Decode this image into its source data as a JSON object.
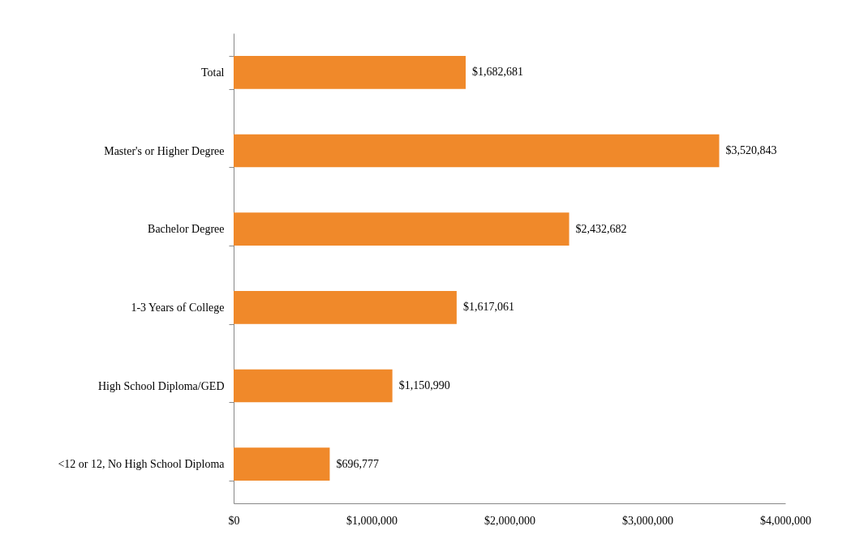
{
  "chart_data": {
    "type": "bar",
    "orientation": "horizontal",
    "categories": [
      "Total",
      "Master's or Higher Degree",
      "Bachelor Degree",
      "1-3 Years of College",
      "High School Diploma/GED",
      "<12 or 12, No High School Diploma"
    ],
    "values": [
      1682681,
      3520843,
      2432682,
      1617061,
      1150990,
      696777
    ],
    "value_labels": [
      "$1,682,681",
      "$3,520,843",
      "$2,432,682",
      "$1,617,061",
      "$1,150,990",
      "$696,777"
    ],
    "color": "#f0892a",
    "xlim": [
      0,
      4000000
    ],
    "xticks": [
      {
        "value": 0,
        "label": "$0"
      },
      {
        "value": 1000000,
        "label": "$1,000,000"
      },
      {
        "value": 2000000,
        "label": "$2,000,000"
      },
      {
        "value": 3000000,
        "label": "$3,000,000"
      },
      {
        "value": 4000000,
        "label": "$4,000,000"
      }
    ],
    "grid": false
  }
}
